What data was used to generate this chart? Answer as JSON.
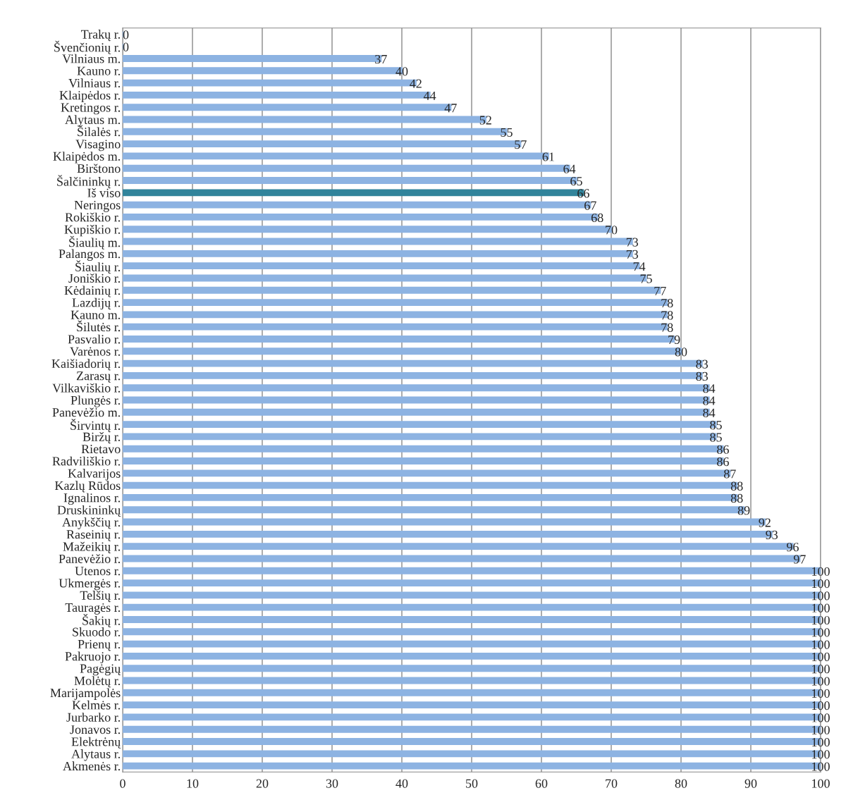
{
  "chart_data": {
    "type": "bar",
    "orientation": "horizontal",
    "categories": [
      "Trakų r.",
      "Švenčionių r.",
      "Vilniaus m.",
      "Kauno r.",
      "Vilniaus r.",
      "Klaipėdos r.",
      "Kretingos r.",
      "Alytaus m.",
      "Šilalės r.",
      "Visagino",
      "Klaipėdos m.",
      "Birštono",
      "Šalčininkų r.",
      "Iš viso",
      "Neringos",
      "Rokiškio r.",
      "Kupiškio r.",
      "Šiaulių m.",
      "Palangos m.",
      "Šiaulių r.",
      "Joniškio r.",
      "Kėdainių r.",
      "Lazdijų r.",
      "Kauno m.",
      "Šilutės r.",
      "Pasvalio r.",
      "Varėnos r.",
      "Kaišiadorių r.",
      "Zarasų r.",
      "Vilkaviškio r.",
      "Plungės r.",
      "Panevėžio m.",
      "Širvintų r.",
      "Biržų r.",
      "Rietavo",
      "Radviliškio r.",
      "Kalvarijos",
      "Kazlų Rūdos",
      "Ignalinos r.",
      "Druskininkų",
      "Anykščių r.",
      "Raseinių r.",
      "Mažeikių r.",
      "Panevėžio r.",
      "Utenos r.",
      "Ukmergės r.",
      "Telšių r.",
      "Tauragės r.",
      "Šakių r.",
      "Skuodo r.",
      "Prienų r.",
      "Pakruojo r.",
      "Pagėgių",
      "Molėtų r.",
      "Marijampolės",
      "Kelmės r.",
      "Jurbarko r.",
      "Jonavos r.",
      "Elektrėnų",
      "Alytaus r.",
      "Akmenės r."
    ],
    "values": [
      0,
      0,
      37,
      40,
      42,
      44,
      47,
      52,
      55,
      57,
      61,
      64,
      65,
      66,
      67,
      68,
      70,
      73,
      73,
      74,
      75,
      77,
      78,
      78,
      78,
      79,
      80,
      83,
      83,
      84,
      84,
      84,
      85,
      85,
      86,
      86,
      87,
      88,
      88,
      89,
      92,
      93,
      96,
      97,
      100,
      100,
      100,
      100,
      100,
      100,
      100,
      100,
      100,
      100,
      100,
      100,
      100,
      100,
      100,
      100,
      100
    ],
    "colors": [
      "#8db3e2",
      "#8db3e2",
      "#8db3e2",
      "#8db3e2",
      "#8db3e2",
      "#8db3e2",
      "#8db3e2",
      "#8db3e2",
      "#8db3e2",
      "#8db3e2",
      "#8db3e2",
      "#8db3e2",
      "#8db3e2",
      "#31849b",
      "#8db3e2",
      "#8db3e2",
      "#8db3e2",
      "#8db3e2",
      "#8db3e2",
      "#8db3e2",
      "#8db3e2",
      "#8db3e2",
      "#8db3e2",
      "#8db3e2",
      "#8db3e2",
      "#8db3e2",
      "#8db3e2",
      "#8db3e2",
      "#8db3e2",
      "#8db3e2",
      "#8db3e2",
      "#8db3e2",
      "#8db3e2",
      "#8db3e2",
      "#8db3e2",
      "#8db3e2",
      "#8db3e2",
      "#8db3e2",
      "#8db3e2",
      "#8db3e2",
      "#8db3e2",
      "#8db3e2",
      "#8db3e2",
      "#8db3e2",
      "#8db3e2",
      "#8db3e2",
      "#8db3e2",
      "#8db3e2",
      "#8db3e2",
      "#8db3e2",
      "#8db3e2",
      "#8db3e2",
      "#8db3e2",
      "#8db3e2",
      "#8db3e2",
      "#8db3e2",
      "#8db3e2",
      "#8db3e2",
      "#8db3e2",
      "#8db3e2",
      "#8db3e2"
    ],
    "xlim": [
      0,
      100
    ],
    "xticks": [
      0,
      10,
      20,
      30,
      40,
      50,
      60,
      70,
      80,
      90,
      100
    ],
    "grid": "x",
    "data_labels": true
  }
}
